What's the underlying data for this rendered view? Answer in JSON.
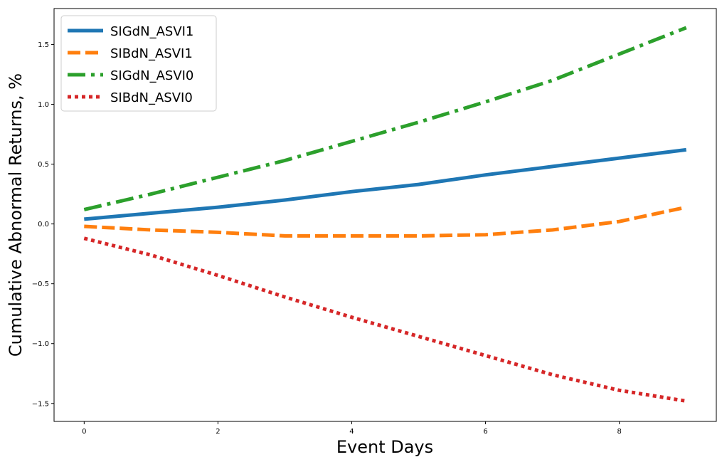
{
  "chart_data": {
    "type": "line",
    "xlabel": "Event Days",
    "ylabel": "Cumulative Abnormal Returns, %",
    "xlim": [
      -0.45,
      9.45
    ],
    "ylim": [
      -1.65,
      1.8
    ],
    "xticks": [
      0,
      2,
      4,
      6,
      8
    ],
    "xtick_labels": [
      "0",
      "2",
      "4",
      "6",
      "8"
    ],
    "yticks": [
      -1.5,
      -1.0,
      -0.5,
      0.0,
      0.5,
      1.0,
      1.5
    ],
    "ytick_labels": [
      "−1.5",
      "−1.0",
      "−0.5",
      "0.0",
      "0.5",
      "1.0",
      "1.5"
    ],
    "grid": false,
    "legend_position": "top-left",
    "x": [
      0,
      1,
      2,
      3,
      4,
      5,
      6,
      7,
      8,
      9
    ],
    "series": [
      {
        "name": "SIGdN_ASVI1",
        "color": "#1f77b4",
        "dash": "solid",
        "values": [
          0.04,
          0.09,
          0.14,
          0.2,
          0.27,
          0.33,
          0.41,
          0.48,
          0.55,
          0.62
        ]
      },
      {
        "name": "SIBdN_ASVI1",
        "color": "#ff7f0e",
        "dash": "dashed",
        "values": [
          -0.02,
          -0.05,
          -0.07,
          -0.1,
          -0.1,
          -0.1,
          -0.09,
          -0.05,
          0.02,
          0.14
        ]
      },
      {
        "name": "SIGdN_ASVI0",
        "color": "#2ca02c",
        "dash": "dashdot",
        "values": [
          0.12,
          0.25,
          0.39,
          0.53,
          0.69,
          0.85,
          1.02,
          1.2,
          1.42,
          1.64
        ]
      },
      {
        "name": "SIBdN_ASVI0",
        "color": "#d62728",
        "dash": "dotted",
        "values": [
          -0.12,
          -0.26,
          -0.43,
          -0.61,
          -0.78,
          -0.94,
          -1.1,
          -1.26,
          -1.39,
          -1.48
        ]
      }
    ]
  }
}
